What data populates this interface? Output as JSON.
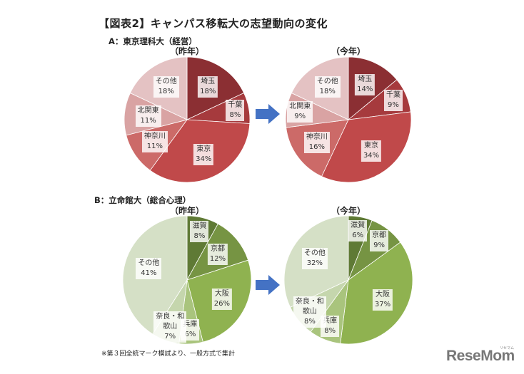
{
  "title": "【図表2】キャンパス移転大の志望動向の変化",
  "footnote": "※第３回全統マーク模試より、一般方式で集計",
  "logo": {
    "text": "ReseMom",
    "sub": "リセマム"
  },
  "arrow_icon": "right-arrow",
  "colors": {
    "arrow": "#4472c4"
  },
  "sections": [
    {
      "label": "A：東京理科大（経営）",
      "before_label": "（昨年）",
      "after_label": "（今年）"
    },
    {
      "label": "B：立命館大（総合心理）",
      "before_label": "（昨年）",
      "after_label": "（今年）"
    }
  ],
  "chart_data": [
    {
      "type": "pie",
      "title": "A：東京理科大（経営） 昨年",
      "categories": [
        "埼玉",
        "千葉",
        "東京",
        "神奈川",
        "北関東",
        "その他"
      ],
      "values": [
        18,
        8,
        34,
        11,
        11,
        18
      ],
      "colors": [
        "#8b2f33",
        "#a63a3d",
        "#c0494a",
        "#cc6a68",
        "#d9a3a3",
        "#e4c2c3"
      ],
      "labels": [
        "埼玉\n18%",
        "千葉\n8%",
        "東京\n34%",
        "神奈川\n11%",
        "北関東\n11%",
        "その他\n18%"
      ]
    },
    {
      "type": "pie",
      "title": "A：東京理科大（経営） 今年",
      "categories": [
        "埼玉",
        "千葉",
        "東京",
        "神奈川",
        "北関東",
        "その他"
      ],
      "values": [
        14,
        9,
        34,
        16,
        9,
        18
      ],
      "colors": [
        "#8b2f33",
        "#a63a3d",
        "#c0494a",
        "#cc6a68",
        "#d9a3a3",
        "#e4c2c3"
      ],
      "labels": [
        "埼玉\n14%",
        "千葉\n9%",
        "東京\n34%",
        "神奈川\n16%",
        "北関東\n9%",
        "その他\n18%"
      ]
    },
    {
      "type": "pie",
      "title": "B：立命館大（総合心理） 昨年",
      "categories": [
        "滋賀",
        "京都",
        "大阪",
        "兵庫",
        "奈良・和歌山",
        "その他"
      ],
      "values": [
        8,
        12,
        26,
        6,
        7,
        41
      ],
      "colors": [
        "#5f7a35",
        "#769443",
        "#8fb250",
        "#a9c47d",
        "#c5d6ad",
        "#d5e0c6"
      ],
      "labels": [
        "滋賀\n8%",
        "京都\n12%",
        "大阪\n26%",
        "兵庫\n6%",
        "奈良・和\n歌山\n7%",
        "その他\n41%"
      ]
    },
    {
      "type": "pie",
      "title": "B：立命館大（総合心理） 今年",
      "categories": [
        "滋賀",
        "京都",
        "大阪",
        "兵庫",
        "奈良・和歌山",
        "その他"
      ],
      "values": [
        6,
        9,
        37,
        8,
        8,
        32
      ],
      "colors": [
        "#5f7a35",
        "#769443",
        "#8fb250",
        "#a9c47d",
        "#c5d6ad",
        "#d5e0c6"
      ],
      "labels": [
        "滋賀\n6%",
        "京都\n9%",
        "大阪\n37%",
        "兵庫\n8%",
        "奈良・和\n歌山\n8%",
        "その他\n32%"
      ]
    }
  ]
}
